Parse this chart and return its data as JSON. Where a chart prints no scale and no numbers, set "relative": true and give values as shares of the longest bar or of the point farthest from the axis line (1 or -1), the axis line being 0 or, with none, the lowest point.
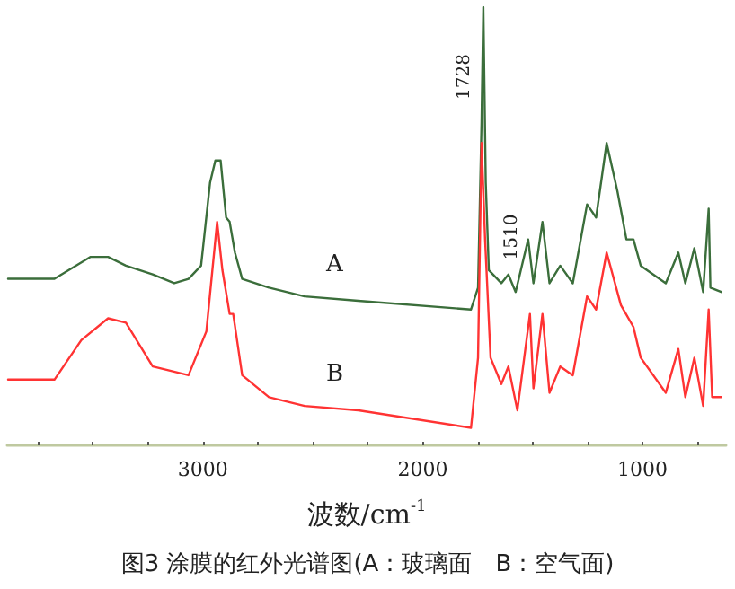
{
  "chart_data": {
    "type": "line",
    "relative": true,
    "title": "图3 涂膜的红外光谱图(A：玻璃面　B：空气面)",
    "xlabel": "波数/cm$^{-1}$",
    "xlim": [
      3890,
      620
    ],
    "xticks": [
      {
        "value": 3750,
        "label": null
      },
      {
        "value": 3500,
        "label": null
      },
      {
        "value": 3250,
        "label": null
      },
      3000,
      {
        "value": 2750,
        "label": null
      },
      {
        "value": 2500,
        "label": null
      },
      {
        "value": 2250,
        "label": null
      },
      2000,
      {
        "value": 1750,
        "label": null
      },
      {
        "value": 1500,
        "label": null
      },
      {
        "value": 1250,
        "label": null
      },
      1000,
      {
        "value": 750,
        "label": null
      }
    ],
    "legend": false,
    "marker": "none",
    "grid": false,
    "annotations": [
      {
        "text": "1728",
        "x": 1728,
        "y": 1.0
      },
      {
        "text": "1510",
        "x": 1510,
        "y": 0.47
      }
    ],
    "series": [
      {
        "name": "A",
        "color": "#3b6e3b",
        "x": [
          3886,
          3675,
          3512,
          3431,
          3350,
          3228,
          3130,
          3065,
          3008,
          2967,
          2943,
          2919,
          2894,
          2878,
          2854,
          2821,
          2699,
          2537,
          2293,
          1780,
          1748,
          1732,
          1724,
          1713,
          1699,
          1642,
          1610,
          1577,
          1520,
          1496,
          1455,
          1423,
          1374,
          1317,
          1252,
          1211,
          1163,
          1114,
          1073,
          1041,
          1008,
          894,
          837,
          805,
          764,
          724,
          699,
          691,
          642
        ],
        "values": [
          0.38,
          0.38,
          0.43,
          0.43,
          0.41,
          0.39,
          0.37,
          0.38,
          0.41,
          0.6,
          0.65,
          0.65,
          0.52,
          0.51,
          0.44,
          0.38,
          0.36,
          0.34,
          0.33,
          0.31,
          0.36,
          0.74,
          1.0,
          0.6,
          0.4,
          0.37,
          0.39,
          0.35,
          0.47,
          0.37,
          0.51,
          0.37,
          0.41,
          0.37,
          0.55,
          0.52,
          0.69,
          0.58,
          0.47,
          0.47,
          0.41,
          0.37,
          0.44,
          0.37,
          0.45,
          0.35,
          0.54,
          0.36,
          0.35
        ]
      },
      {
        "name": "B",
        "color": "#ff3333",
        "x": [
          3886,
          3675,
          3553,
          3431,
          3350,
          3228,
          3065,
          2984,
          2935,
          2911,
          2878,
          2862,
          2821,
          2699,
          2537,
          2293,
          1780,
          1748,
          1732,
          1716,
          1691,
          1642,
          1610,
          1569,
          1512,
          1496,
          1455,
          1423,
          1374,
          1317,
          1252,
          1211,
          1163,
          1098,
          1041,
          1008,
          894,
          837,
          805,
          764,
          724,
          699,
          683,
          642
        ],
        "values": [
          0.15,
          0.15,
          0.24,
          0.29,
          0.28,
          0.18,
          0.16,
          0.26,
          0.51,
          0.4,
          0.3,
          0.3,
          0.16,
          0.11,
          0.09,
          0.08,
          0.04,
          0.2,
          0.69,
          0.47,
          0.2,
          0.14,
          0.18,
          0.08,
          0.3,
          0.13,
          0.3,
          0.12,
          0.18,
          0.16,
          0.34,
          0.31,
          0.44,
          0.32,
          0.27,
          0.2,
          0.12,
          0.22,
          0.11,
          0.2,
          0.09,
          0.31,
          0.11,
          0.11
        ]
      }
    ]
  }
}
